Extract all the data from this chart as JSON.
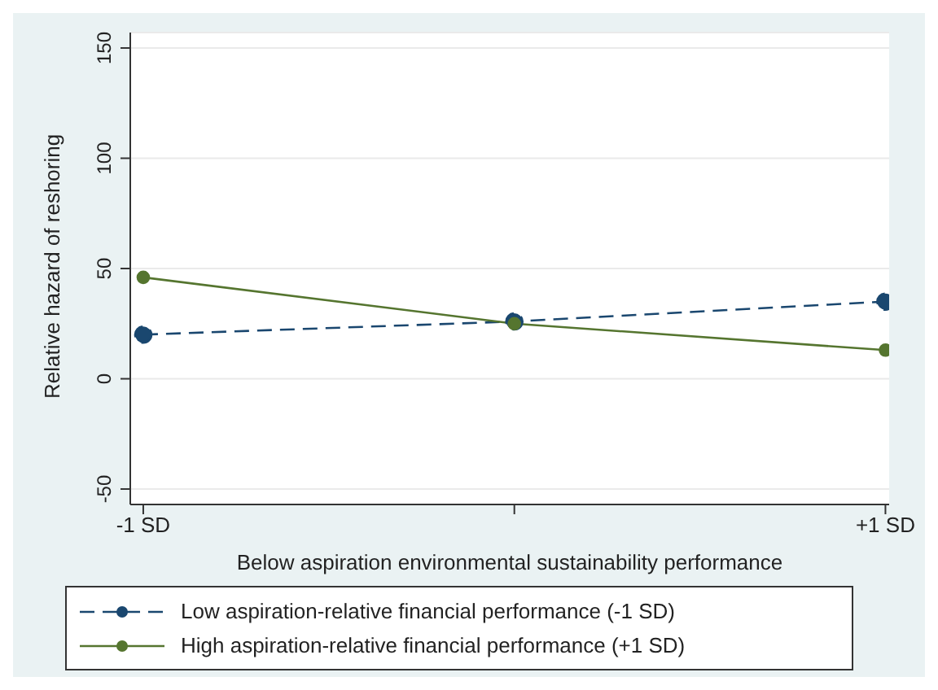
{
  "chart_data": {
    "type": "line",
    "xlabel": "Below aspiration environmental sustainability performance",
    "ylabel": "Relative hazard of reshoring",
    "categories": [
      "-1 SD",
      null,
      "+1 SD"
    ],
    "series": [
      {
        "name": "Low aspiration-relative financial performance (-1 SD)",
        "color": "#1a476f",
        "values": [
          20,
          26,
          35
        ],
        "line_style": "dashed"
      },
      {
        "name": "High aspiration-relative financial performance (+1 SD)",
        "color": "#55752f",
        "values": [
          46,
          25,
          13
        ],
        "line_style": "solid"
      }
    ],
    "ylim": [
      -57,
      157
    ],
    "yticks": [
      -50,
      0,
      50,
      100,
      150
    ],
    "grid": "y",
    "legend": "bottom",
    "marker": "circle"
  }
}
